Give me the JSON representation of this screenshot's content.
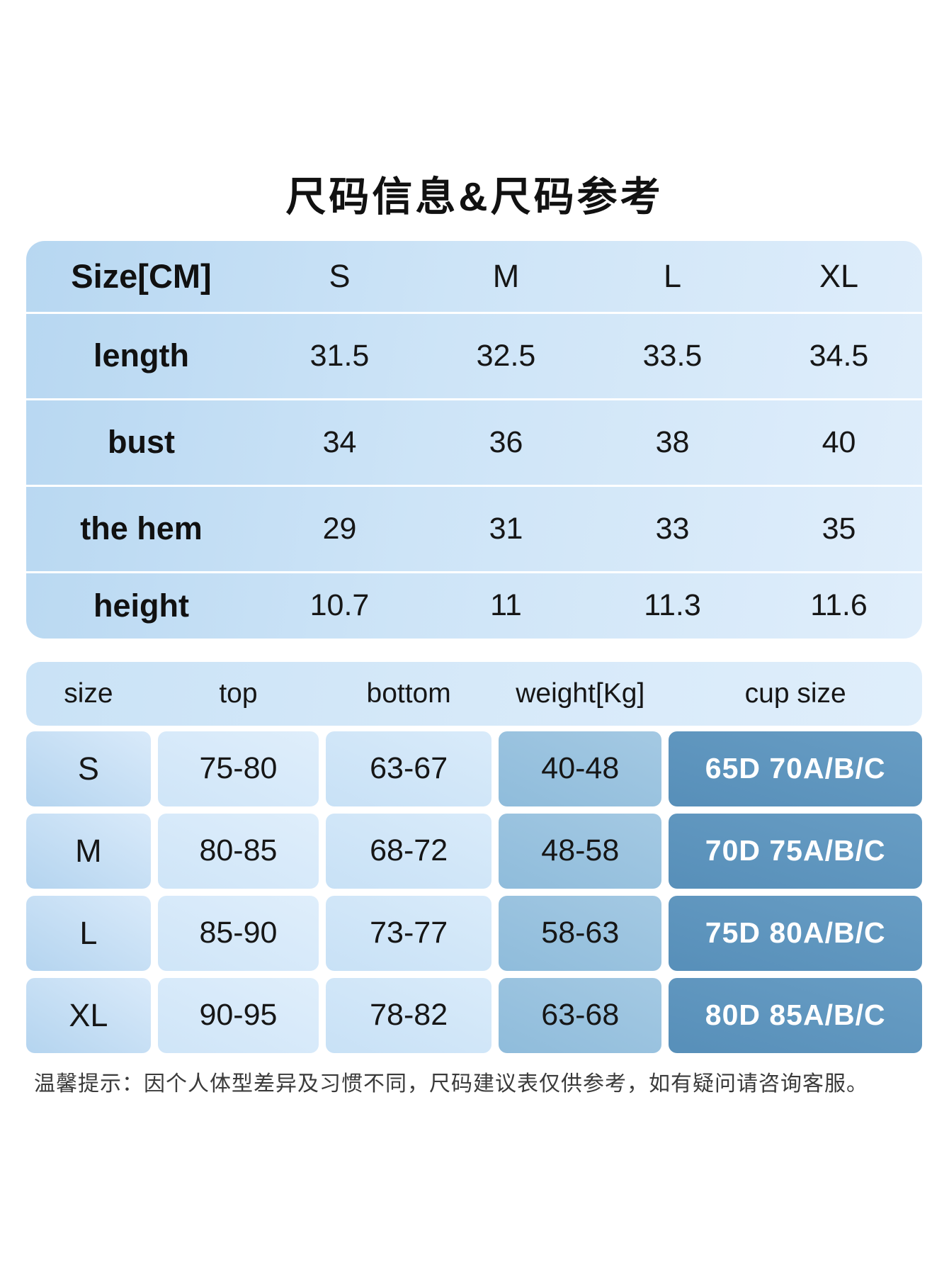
{
  "title": "尺码信息&尺码参考",
  "size_table_cm": {
    "header": [
      "Size[CM]",
      "S",
      "M",
      "L",
      "XL"
    ],
    "rows": [
      {
        "label": "length",
        "values": [
          "31.5",
          "32.5",
          "33.5",
          "34.5"
        ]
      },
      {
        "label": "bust",
        "values": [
          "34",
          "36",
          "38",
          "40"
        ]
      },
      {
        "label": "the hem",
        "values": [
          "29",
          "31",
          "33",
          "35"
        ]
      },
      {
        "label": "height",
        "values": [
          "10.7",
          "11",
          "11.3",
          "11.6"
        ]
      }
    ]
  },
  "reference_table": {
    "header": [
      "size",
      "top",
      "bottom",
      "weight[Kg]",
      "cup size"
    ],
    "rows": [
      {
        "size": "S",
        "top": "75-80",
        "bottom": "63-67",
        "weight": "40-48",
        "cup": "65D 70A/B/C"
      },
      {
        "size": "M",
        "top": "80-85",
        "bottom": "68-72",
        "weight": "48-58",
        "cup": "70D 75A/B/C"
      },
      {
        "size": "L",
        "top": "85-90",
        "bottom": "73-77",
        "weight": "58-63",
        "cup": "75D 80A/B/C"
      },
      {
        "size": "XL",
        "top": "90-95",
        "bottom": "78-82",
        "weight": "63-68",
        "cup": "80D 85A/B/C"
      }
    ]
  },
  "note": "温馨提示：因个人体型差异及习惯不同，尺码建议表仅供参考，如有疑问请咨询客服。",
  "colors": {
    "table_gradient_from": "#b7d7f1",
    "table_gradient_to": "#e0eefb",
    "weight_cell": "#9ac2de",
    "cup_cell": "#5e94bd",
    "cup_text": "#ffffff",
    "body_text": "#161616",
    "note_text": "#3a3a3a"
  },
  "chart_data": [
    {
      "type": "table",
      "title": "尺码信息&尺码参考",
      "columns": [
        "Size[CM]",
        "S",
        "M",
        "L",
        "XL"
      ],
      "rows": [
        [
          "length",
          31.5,
          32.5,
          33.5,
          34.5
        ],
        [
          "bust",
          34,
          36,
          38,
          40
        ],
        [
          "the hem",
          29,
          31,
          33,
          35
        ],
        [
          "height",
          10.7,
          11,
          11.3,
          11.6
        ]
      ]
    },
    {
      "type": "table",
      "title": "size reference",
      "columns": [
        "size",
        "top",
        "bottom",
        "weight[Kg]",
        "cup size"
      ],
      "rows": [
        [
          "S",
          "75-80",
          "63-67",
          "40-48",
          "65D 70A/B/C"
        ],
        [
          "M",
          "80-85",
          "68-72",
          "48-58",
          "70D 75A/B/C"
        ],
        [
          "L",
          "85-90",
          "73-77",
          "58-63",
          "75D 80A/B/C"
        ],
        [
          "XL",
          "90-95",
          "78-82",
          "63-68",
          "80D 85A/B/C"
        ]
      ]
    }
  ]
}
